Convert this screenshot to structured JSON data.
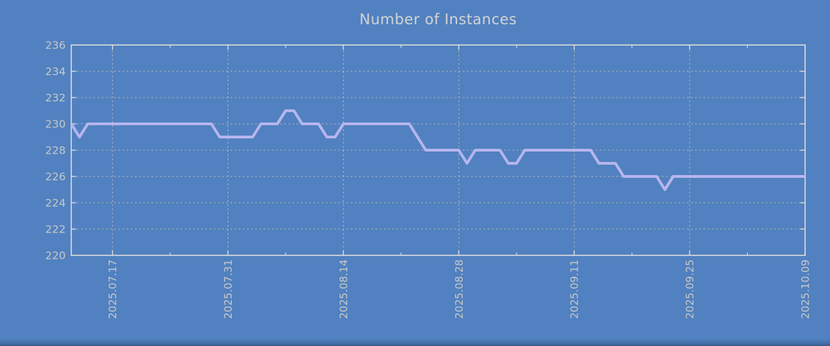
{
  "title": "Number of Instances",
  "colors": {
    "background": "#5181c0",
    "line": "#b7b5ee",
    "grid": "#c5c2b2",
    "border": "#dcdcdc",
    "title_text": "#d4d4d4",
    "tick_text": "#c8c8c8"
  },
  "chart_data": {
    "type": "line",
    "title": "Number of Instances",
    "xlabel": "",
    "ylabel": "",
    "ylim": [
      220,
      236
    ],
    "grid": true,
    "legend": "none",
    "x_start_date": "2025.07.12",
    "x_interval": "1 day",
    "values": [
      230,
      229,
      230,
      230,
      230,
      230,
      230,
      230,
      230,
      230,
      230,
      230,
      230,
      230,
      230,
      230,
      230,
      230,
      229,
      229,
      229,
      229,
      229,
      230,
      230,
      230,
      231,
      231,
      230,
      230,
      230,
      229,
      229,
      230,
      230,
      230,
      230,
      230,
      230,
      230,
      230,
      230,
      229,
      228,
      228,
      228,
      228,
      228,
      227,
      228,
      228,
      228,
      228,
      227,
      227,
      228,
      228,
      228,
      228,
      228,
      228,
      228,
      228,
      228,
      227,
      227,
      227,
      226,
      226,
      226,
      226,
      226,
      225,
      226,
      226,
      226,
      226,
      226,
      226,
      226,
      226,
      226,
      226,
      226,
      226,
      226,
      226,
      226,
      226,
      226
    ],
    "x_ticks": [
      {
        "label": "2025.07.17",
        "index": 5
      },
      {
        "label": "2025.07.31",
        "index": 19
      },
      {
        "label": "2025.08.14",
        "index": 33
      },
      {
        "label": "2025.08.28",
        "index": 47
      },
      {
        "label": "2025.09.11",
        "index": 61
      },
      {
        "label": "2025.09.25",
        "index": 75
      },
      {
        "label": "2025.10.09",
        "index": 89
      }
    ],
    "y_ticks": [
      220,
      222,
      224,
      226,
      228,
      230,
      232,
      234,
      236
    ]
  }
}
